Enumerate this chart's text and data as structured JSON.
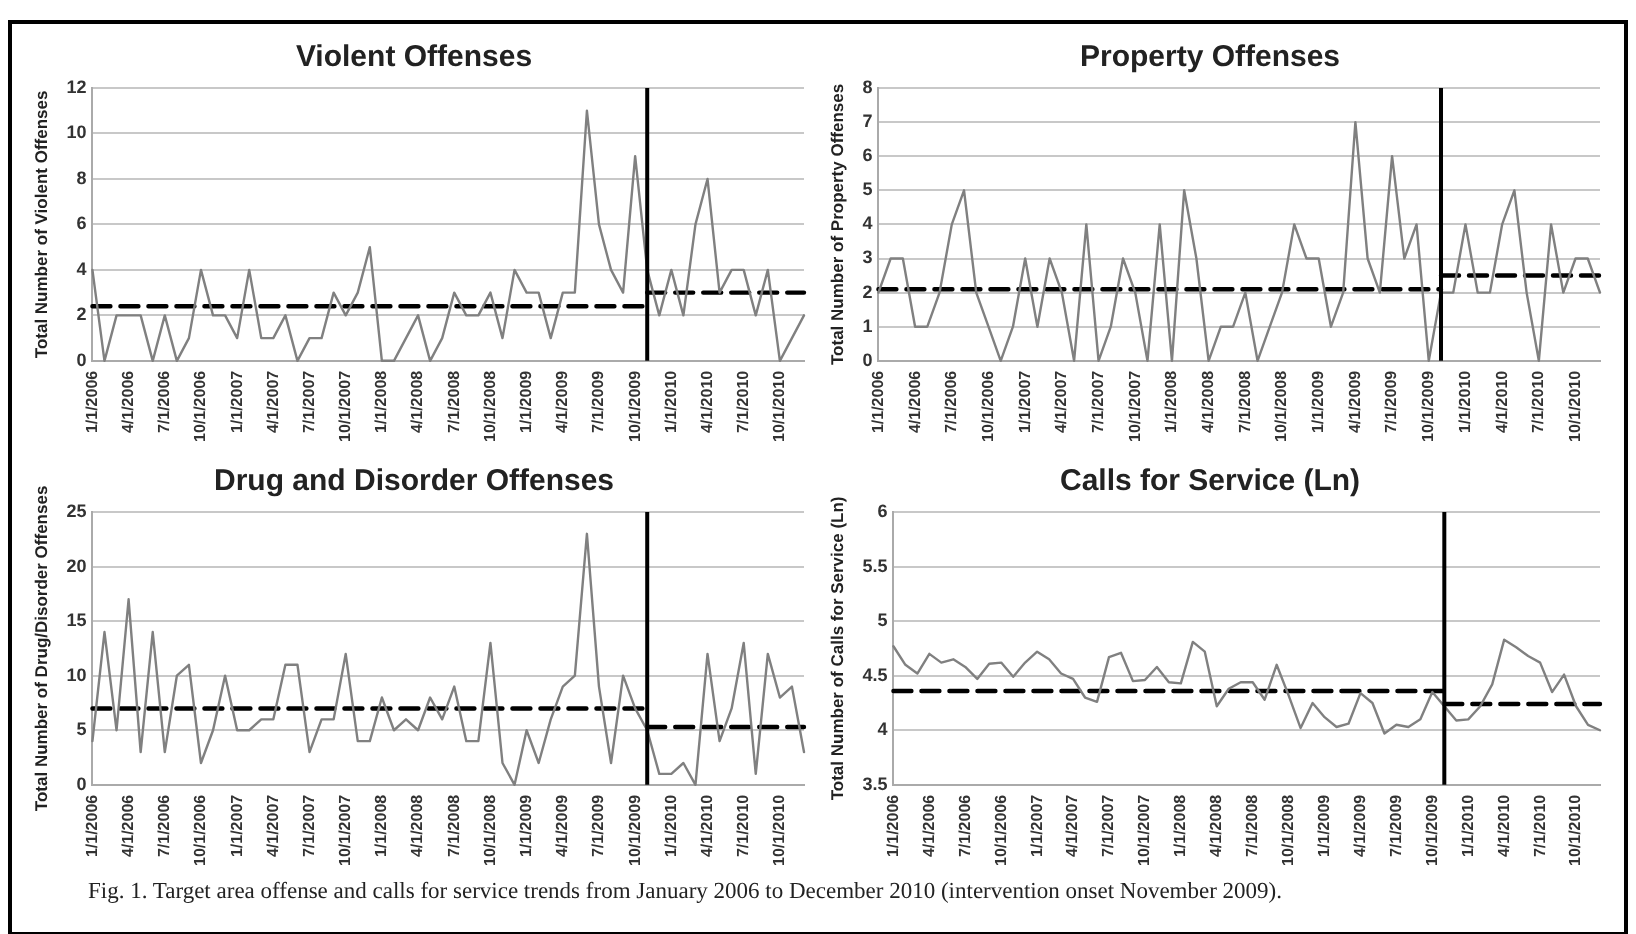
{
  "chart_data": [
    {
      "type": "line",
      "title": "Violent Offenses",
      "ylabel": "Total Number of Violent Offenses",
      "x": [
        "2006-01",
        "2006-02",
        "2006-03",
        "2006-04",
        "2006-05",
        "2006-06",
        "2006-07",
        "2006-08",
        "2006-09",
        "2006-10",
        "2006-11",
        "2006-12",
        "2007-01",
        "2007-02",
        "2007-03",
        "2007-04",
        "2007-05",
        "2007-06",
        "2007-07",
        "2007-08",
        "2007-09",
        "2007-10",
        "2007-11",
        "2007-12",
        "2008-01",
        "2008-02",
        "2008-03",
        "2008-04",
        "2008-05",
        "2008-06",
        "2008-07",
        "2008-08",
        "2008-09",
        "2008-10",
        "2008-11",
        "2008-12",
        "2009-01",
        "2009-02",
        "2009-03",
        "2009-04",
        "2009-05",
        "2009-06",
        "2009-07",
        "2009-08",
        "2009-09",
        "2009-10",
        "2009-11",
        "2009-12",
        "2010-01",
        "2010-02",
        "2010-03",
        "2010-04",
        "2010-05",
        "2010-06",
        "2010-07",
        "2010-08",
        "2010-09",
        "2010-10",
        "2010-11",
        "2010-12"
      ],
      "series": [
        {
          "color": "#808080",
          "values": [
            4,
            0,
            2,
            2,
            2,
            0,
            2,
            0,
            1,
            4,
            2,
            2,
            1,
            4,
            1,
            1,
            2,
            0,
            1,
            1,
            3,
            2,
            3,
            5,
            0,
            0,
            1,
            2,
            0,
            1,
            3,
            2,
            2,
            3,
            1,
            4,
            3,
            3,
            1,
            3,
            3,
            11,
            6,
            4,
            3,
            9,
            4,
            2,
            4,
            2,
            6,
            8,
            3,
            4,
            4,
            2,
            4,
            0,
            1,
            2
          ]
        },
        {
          "color": "#000000",
          "line_style": "dashed",
          "values": [
            2.4,
            2.4,
            2.4,
            2.4,
            2.4,
            2.4,
            2.4,
            2.4,
            2.4,
            2.4,
            2.4,
            2.4,
            2.4,
            2.4,
            2.4,
            2.4,
            2.4,
            2.4,
            2.4,
            2.4,
            2.4,
            2.4,
            2.4,
            2.4,
            2.4,
            2.4,
            2.4,
            2.4,
            2.4,
            2.4,
            2.4,
            2.4,
            2.4,
            2.4,
            2.4,
            2.4,
            2.4,
            2.4,
            2.4,
            2.4,
            2.4,
            2.4,
            2.4,
            2.4,
            2.4,
            2.4,
            2.4,
            null,
            null,
            null,
            null,
            null,
            null,
            null,
            null,
            null,
            null,
            null,
            null,
            null
          ]
        },
        {
          "color": "#000000",
          "line_style": "dashed",
          "values": [
            null,
            null,
            null,
            null,
            null,
            null,
            null,
            null,
            null,
            null,
            null,
            null,
            null,
            null,
            null,
            null,
            null,
            null,
            null,
            null,
            null,
            null,
            null,
            null,
            null,
            null,
            null,
            null,
            null,
            null,
            null,
            null,
            null,
            null,
            null,
            null,
            null,
            null,
            null,
            null,
            null,
            null,
            null,
            null,
            null,
            null,
            3,
            3,
            3,
            3,
            3,
            3,
            3,
            3,
            3,
            3,
            3,
            3,
            3,
            3
          ]
        }
      ],
      "xlim": [
        "2006-01",
        "2010-12"
      ],
      "xticks": [
        {
          "value": "2006-01",
          "label": "1/1/2006"
        },
        {
          "value": "2006-04",
          "label": "4/1/2006"
        },
        {
          "value": "2006-07",
          "label": "7/1/2006"
        },
        {
          "value": "2006-10",
          "label": "10/1/2006"
        },
        {
          "value": "2007-01",
          "label": "1/1/2007"
        },
        {
          "value": "2007-04",
          "label": "4/1/2007"
        },
        {
          "value": "2007-07",
          "label": "7/1/2007"
        },
        {
          "value": "2007-10",
          "label": "10/1/2007"
        },
        {
          "value": "2008-01",
          "label": "1/1/2008"
        },
        {
          "value": "2008-04",
          "label": "4/1/2008"
        },
        {
          "value": "2008-07",
          "label": "7/1/2008"
        },
        {
          "value": "2008-10",
          "label": "10/1/2008"
        },
        {
          "value": "2009-01",
          "label": "1/1/2009"
        },
        {
          "value": "2009-04",
          "label": "4/1/2009"
        },
        {
          "value": "2009-07",
          "label": "7/1/2009"
        },
        {
          "value": "2009-10",
          "label": "10/1/2009"
        },
        {
          "value": "2010-01",
          "label": "1/1/2010"
        },
        {
          "value": "2010-04",
          "label": "4/1/2010"
        },
        {
          "value": "2010-07",
          "label": "7/1/2010"
        },
        {
          "value": "2010-10",
          "label": "10/1/2010"
        }
      ],
      "ylim": [
        0,
        12
      ],
      "yticks": [
        0,
        2,
        4,
        6,
        8,
        10,
        12
      ],
      "grid": "y",
      "legend": false,
      "marker": "none",
      "ref_lines": [
        {
          "axis": "x",
          "value": "2009-11",
          "color": "#000000"
        }
      ],
      "annotations": [
        "Fig. 1. Target area offense and calls for service trends from January 2006 to December 2010 (intervention onset November 2009)."
      ]
    },
    {
      "type": "line",
      "title": "Property Offenses",
      "ylabel": "Total Number of Property Offenses",
      "x": [
        "2006-01",
        "2006-02",
        "2006-03",
        "2006-04",
        "2006-05",
        "2006-06",
        "2006-07",
        "2006-08",
        "2006-09",
        "2006-10",
        "2006-11",
        "2006-12",
        "2007-01",
        "2007-02",
        "2007-03",
        "2007-04",
        "2007-05",
        "2007-06",
        "2007-07",
        "2007-08",
        "2007-09",
        "2007-10",
        "2007-11",
        "2007-12",
        "2008-01",
        "2008-02",
        "2008-03",
        "2008-04",
        "2008-05",
        "2008-06",
        "2008-07",
        "2008-08",
        "2008-09",
        "2008-10",
        "2008-11",
        "2008-12",
        "2009-01",
        "2009-02",
        "2009-03",
        "2009-04",
        "2009-05",
        "2009-06",
        "2009-07",
        "2009-08",
        "2009-09",
        "2009-10",
        "2009-11",
        "2009-12",
        "2010-01",
        "2010-02",
        "2010-03",
        "2010-04",
        "2010-05",
        "2010-06",
        "2010-07",
        "2010-08",
        "2010-09",
        "2010-10",
        "2010-11",
        "2010-12"
      ],
      "series": [
        {
          "color": "#808080",
          "values": [
            2,
            3,
            3,
            1,
            1,
            2,
            4,
            5,
            2,
            1,
            0,
            1,
            3,
            1,
            3,
            2,
            0,
            4,
            0,
            1,
            3,
            2,
            0,
            4,
            0,
            5,
            3,
            0,
            1,
            1,
            2,
            0,
            1,
            2,
            4,
            3,
            3,
            1,
            2,
            7,
            3,
            2,
            6,
            3,
            4,
            0,
            2,
            2,
            4,
            2,
            2,
            4,
            5,
            2,
            0,
            4,
            2,
            3,
            3,
            2
          ]
        },
        {
          "color": "#000000",
          "line_style": "dashed",
          "values": [
            2.1,
            2.1,
            2.1,
            2.1,
            2.1,
            2.1,
            2.1,
            2.1,
            2.1,
            2.1,
            2.1,
            2.1,
            2.1,
            2.1,
            2.1,
            2.1,
            2.1,
            2.1,
            2.1,
            2.1,
            2.1,
            2.1,
            2.1,
            2.1,
            2.1,
            2.1,
            2.1,
            2.1,
            2.1,
            2.1,
            2.1,
            2.1,
            2.1,
            2.1,
            2.1,
            2.1,
            2.1,
            2.1,
            2.1,
            2.1,
            2.1,
            2.1,
            2.1,
            2.1,
            2.1,
            2.1,
            2.1,
            null,
            null,
            null,
            null,
            null,
            null,
            null,
            null,
            null,
            null,
            null,
            null,
            null
          ]
        },
        {
          "color": "#000000",
          "line_style": "dashed",
          "values": [
            null,
            null,
            null,
            null,
            null,
            null,
            null,
            null,
            null,
            null,
            null,
            null,
            null,
            null,
            null,
            null,
            null,
            null,
            null,
            null,
            null,
            null,
            null,
            null,
            null,
            null,
            null,
            null,
            null,
            null,
            null,
            null,
            null,
            null,
            null,
            null,
            null,
            null,
            null,
            null,
            null,
            null,
            null,
            null,
            null,
            null,
            2.5,
            2.5,
            2.5,
            2.5,
            2.5,
            2.5,
            2.5,
            2.5,
            2.5,
            2.5,
            2.5,
            2.5,
            2.5,
            2.5
          ]
        }
      ],
      "xlim": [
        "2006-01",
        "2010-12"
      ],
      "xticks": [
        {
          "value": "2006-01",
          "label": "1/1/2006"
        },
        {
          "value": "2006-04",
          "label": "4/1/2006"
        },
        {
          "value": "2006-07",
          "label": "7/1/2006"
        },
        {
          "value": "2006-10",
          "label": "10/1/2006"
        },
        {
          "value": "2007-01",
          "label": "1/1/2007"
        },
        {
          "value": "2007-04",
          "label": "4/1/2007"
        },
        {
          "value": "2007-07",
          "label": "7/1/2007"
        },
        {
          "value": "2007-10",
          "label": "10/1/2007"
        },
        {
          "value": "2008-01",
          "label": "1/1/2008"
        },
        {
          "value": "2008-04",
          "label": "4/1/2008"
        },
        {
          "value": "2008-07",
          "label": "7/1/2008"
        },
        {
          "value": "2008-10",
          "label": "10/1/2008"
        },
        {
          "value": "2009-01",
          "label": "1/1/2009"
        },
        {
          "value": "2009-04",
          "label": "4/1/2009"
        },
        {
          "value": "2009-07",
          "label": "7/1/2009"
        },
        {
          "value": "2009-10",
          "label": "10/1/2009"
        },
        {
          "value": "2010-01",
          "label": "1/1/2010"
        },
        {
          "value": "2010-04",
          "label": "4/1/2010"
        },
        {
          "value": "2010-07",
          "label": "7/1/2010"
        },
        {
          "value": "2010-10",
          "label": "10/1/2010"
        }
      ],
      "ylim": [
        0,
        8
      ],
      "yticks": [
        0,
        1,
        2,
        3,
        4,
        5,
        6,
        7,
        8
      ],
      "grid": "y",
      "legend": false,
      "marker": "none",
      "ref_lines": [
        {
          "axis": "x",
          "value": "2009-11",
          "color": "#000000"
        }
      ]
    },
    {
      "type": "line",
      "title": "Drug and Disorder Offenses",
      "ylabel": "Total Number of Drug/Disorder Offenses",
      "x": [
        "2006-01",
        "2006-02",
        "2006-03",
        "2006-04",
        "2006-05",
        "2006-06",
        "2006-07",
        "2006-08",
        "2006-09",
        "2006-10",
        "2006-11",
        "2006-12",
        "2007-01",
        "2007-02",
        "2007-03",
        "2007-04",
        "2007-05",
        "2007-06",
        "2007-07",
        "2007-08",
        "2007-09",
        "2007-10",
        "2007-11",
        "2007-12",
        "2008-01",
        "2008-02",
        "2008-03",
        "2008-04",
        "2008-05",
        "2008-06",
        "2008-07",
        "2008-08",
        "2008-09",
        "2008-10",
        "2008-11",
        "2008-12",
        "2009-01",
        "2009-02",
        "2009-03",
        "2009-04",
        "2009-05",
        "2009-06",
        "2009-07",
        "2009-08",
        "2009-09",
        "2009-10",
        "2009-11",
        "2009-12",
        "2010-01",
        "2010-02",
        "2010-03",
        "2010-04",
        "2010-05",
        "2010-06",
        "2010-07",
        "2010-08",
        "2010-09",
        "2010-10",
        "2010-11",
        "2010-12"
      ],
      "series": [
        {
          "color": "#808080",
          "values": [
            4,
            14,
            5,
            17,
            3,
            14,
            3,
            10,
            11,
            2,
            5,
            10,
            5,
            5,
            6,
            6,
            11,
            11,
            3,
            6,
            6,
            12,
            4,
            4,
            8,
            5,
            6,
            5,
            8,
            6,
            9,
            4,
            4,
            13,
            2,
            0,
            5,
            2,
            6,
            9,
            10,
            23,
            9,
            2,
            10,
            7,
            5,
            1,
            1,
            2,
            0,
            12,
            4,
            7,
            13,
            1,
            12,
            8,
            9,
            3
          ]
        },
        {
          "color": "#000000",
          "line_style": "dashed",
          "values": [
            7,
            7,
            7,
            7,
            7,
            7,
            7,
            7,
            7,
            7,
            7,
            7,
            7,
            7,
            7,
            7,
            7,
            7,
            7,
            7,
            7,
            7,
            7,
            7,
            7,
            7,
            7,
            7,
            7,
            7,
            7,
            7,
            7,
            7,
            7,
            7,
            7,
            7,
            7,
            7,
            7,
            7,
            7,
            7,
            7,
            7,
            7,
            null,
            null,
            null,
            null,
            null,
            null,
            null,
            null,
            null,
            null,
            null,
            null,
            null
          ]
        },
        {
          "color": "#000000",
          "line_style": "dashed",
          "values": [
            null,
            null,
            null,
            null,
            null,
            null,
            null,
            null,
            null,
            null,
            null,
            null,
            null,
            null,
            null,
            null,
            null,
            null,
            null,
            null,
            null,
            null,
            null,
            null,
            null,
            null,
            null,
            null,
            null,
            null,
            null,
            null,
            null,
            null,
            null,
            null,
            null,
            null,
            null,
            null,
            null,
            null,
            null,
            null,
            null,
            null,
            5.3,
            5.3,
            5.3,
            5.3,
            5.3,
            5.3,
            5.3,
            5.3,
            5.3,
            5.3,
            5.3,
            5.3,
            5.3,
            5.3
          ]
        }
      ],
      "xlim": [
        "2006-01",
        "2010-12"
      ],
      "xticks": [
        {
          "value": "2006-01",
          "label": "1/1/2006"
        },
        {
          "value": "2006-04",
          "label": "4/1/2006"
        },
        {
          "value": "2006-07",
          "label": "7/1/2006"
        },
        {
          "value": "2006-10",
          "label": "10/1/2006"
        },
        {
          "value": "2007-01",
          "label": "1/1/2007"
        },
        {
          "value": "2007-04",
          "label": "4/1/2007"
        },
        {
          "value": "2007-07",
          "label": "7/1/2007"
        },
        {
          "value": "2007-10",
          "label": "10/1/2007"
        },
        {
          "value": "2008-01",
          "label": "1/1/2008"
        },
        {
          "value": "2008-04",
          "label": "4/1/2008"
        },
        {
          "value": "2008-07",
          "label": "7/1/2008"
        },
        {
          "value": "2008-10",
          "label": "10/1/2008"
        },
        {
          "value": "2009-01",
          "label": "1/1/2009"
        },
        {
          "value": "2009-04",
          "label": "4/1/2009"
        },
        {
          "value": "2009-07",
          "label": "7/1/2009"
        },
        {
          "value": "2009-10",
          "label": "10/1/2009"
        },
        {
          "value": "2010-01",
          "label": "1/1/2010"
        },
        {
          "value": "2010-04",
          "label": "4/1/2010"
        },
        {
          "value": "2010-07",
          "label": "7/1/2010"
        },
        {
          "value": "2010-10",
          "label": "10/1/2010"
        }
      ],
      "ylim": [
        0,
        25
      ],
      "yticks": [
        0,
        5,
        10,
        15,
        20,
        25
      ],
      "grid": "y",
      "legend": false,
      "marker": "none",
      "ref_lines": [
        {
          "axis": "x",
          "value": "2009-11",
          "color": "#000000"
        }
      ]
    },
    {
      "type": "line",
      "title": "Calls for Service (Ln)",
      "ylabel": "Total Number of Calls for Service (Ln)",
      "x": [
        "2006-01",
        "2006-02",
        "2006-03",
        "2006-04",
        "2006-05",
        "2006-06",
        "2006-07",
        "2006-08",
        "2006-09",
        "2006-10",
        "2006-11",
        "2006-12",
        "2007-01",
        "2007-02",
        "2007-03",
        "2007-04",
        "2007-05",
        "2007-06",
        "2007-07",
        "2007-08",
        "2007-09",
        "2007-10",
        "2007-11",
        "2007-12",
        "2008-01",
        "2008-02",
        "2008-03",
        "2008-04",
        "2008-05",
        "2008-06",
        "2008-07",
        "2008-08",
        "2008-09",
        "2008-10",
        "2008-11",
        "2008-12",
        "2009-01",
        "2009-02",
        "2009-03",
        "2009-04",
        "2009-05",
        "2009-06",
        "2009-07",
        "2009-08",
        "2009-09",
        "2009-10",
        "2009-11",
        "2009-12",
        "2010-01",
        "2010-02",
        "2010-03",
        "2010-04",
        "2010-05",
        "2010-06",
        "2010-07",
        "2010-08",
        "2010-09",
        "2010-10",
        "2010-11",
        "2010-12"
      ],
      "series": [
        {
          "color": "#808080",
          "values": [
            4.77,
            4.6,
            4.52,
            4.7,
            4.62,
            4.65,
            4.58,
            4.47,
            4.61,
            4.62,
            4.49,
            4.62,
            4.72,
            4.65,
            4.52,
            4.47,
            4.3,
            4.26,
            4.67,
            4.71,
            4.45,
            4.46,
            4.58,
            4.44,
            4.43,
            4.81,
            4.72,
            4.22,
            4.38,
            4.44,
            4.44,
            4.28,
            4.6,
            4.32,
            4.02,
            4.25,
            4.12,
            4.03,
            4.06,
            4.34,
            4.25,
            3.97,
            4.05,
            4.03,
            4.1,
            4.35,
            4.22,
            4.09,
            4.1,
            4.22,
            4.42,
            4.83,
            4.76,
            4.68,
            4.62,
            4.35,
            4.51,
            4.22,
            4.05,
            4.0
          ]
        },
        {
          "color": "#000000",
          "line_style": "dashed",
          "values": [
            4.36,
            4.36,
            4.36,
            4.36,
            4.36,
            4.36,
            4.36,
            4.36,
            4.36,
            4.36,
            4.36,
            4.36,
            4.36,
            4.36,
            4.36,
            4.36,
            4.36,
            4.36,
            4.36,
            4.36,
            4.36,
            4.36,
            4.36,
            4.36,
            4.36,
            4.36,
            4.36,
            4.36,
            4.36,
            4.36,
            4.36,
            4.36,
            4.36,
            4.36,
            4.36,
            4.36,
            4.36,
            4.36,
            4.36,
            4.36,
            4.36,
            4.36,
            4.36,
            4.36,
            4.36,
            4.36,
            4.36,
            null,
            null,
            null,
            null,
            null,
            null,
            null,
            null,
            null,
            null,
            null,
            null,
            null
          ]
        },
        {
          "color": "#000000",
          "line_style": "dashed",
          "values": [
            null,
            null,
            null,
            null,
            null,
            null,
            null,
            null,
            null,
            null,
            null,
            null,
            null,
            null,
            null,
            null,
            null,
            null,
            null,
            null,
            null,
            null,
            null,
            null,
            null,
            null,
            null,
            null,
            null,
            null,
            null,
            null,
            null,
            null,
            null,
            null,
            null,
            null,
            null,
            null,
            null,
            null,
            null,
            null,
            null,
            null,
            4.24,
            4.24,
            4.24,
            4.24,
            4.24,
            4.24,
            4.24,
            4.24,
            4.24,
            4.24,
            4.24,
            4.24,
            4.24,
            4.24
          ]
        }
      ],
      "xlim": [
        "2006-01",
        "2010-12"
      ],
      "xticks": [
        {
          "value": "2006-01",
          "label": "1/1/2006"
        },
        {
          "value": "2006-04",
          "label": "4/1/2006"
        },
        {
          "value": "2006-07",
          "label": "7/1/2006"
        },
        {
          "value": "2006-10",
          "label": "10/1/2006"
        },
        {
          "value": "2007-01",
          "label": "1/1/2007"
        },
        {
          "value": "2007-04",
          "label": "4/1/2007"
        },
        {
          "value": "2007-07",
          "label": "7/1/2007"
        },
        {
          "value": "2007-10",
          "label": "10/1/2007"
        },
        {
          "value": "2008-01",
          "label": "1/1/2008"
        },
        {
          "value": "2008-04",
          "label": "4/1/2008"
        },
        {
          "value": "2008-07",
          "label": "7/1/2008"
        },
        {
          "value": "2008-10",
          "label": "10/1/2008"
        },
        {
          "value": "2009-01",
          "label": "1/1/2009"
        },
        {
          "value": "2009-04",
          "label": "4/1/2009"
        },
        {
          "value": "2009-07",
          "label": "7/1/2009"
        },
        {
          "value": "2009-10",
          "label": "10/1/2009"
        },
        {
          "value": "2010-01",
          "label": "1/1/2010"
        },
        {
          "value": "2010-04",
          "label": "4/1/2010"
        },
        {
          "value": "2010-07",
          "label": "7/1/2010"
        },
        {
          "value": "2010-10",
          "label": "10/1/2010"
        }
      ],
      "ylim": [
        3.5,
        6
      ],
      "yticks": [
        3.5,
        4,
        4.5,
        5,
        5.5,
        6
      ],
      "grid": "y",
      "legend": false,
      "marker": "none",
      "ref_lines": [
        {
          "axis": "x",
          "value": "2009-11",
          "color": "#000000"
        }
      ]
    }
  ]
}
